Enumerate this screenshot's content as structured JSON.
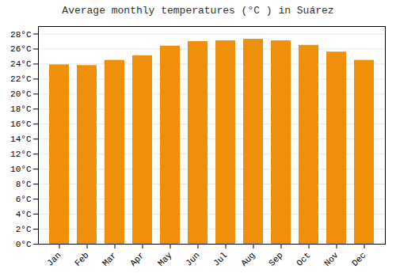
{
  "chart_data": {
    "type": "bar",
    "title": "Average monthly temperatures (°C ) in Suárez",
    "categories": [
      "Jan",
      "Feb",
      "Mar",
      "Apr",
      "May",
      "Jun",
      "Jul",
      "Aug",
      "Sep",
      "Oct",
      "Nov",
      "Dec"
    ],
    "values": [
      23.9,
      23.8,
      24.5,
      25.1,
      26.4,
      27.0,
      27.1,
      27.3,
      27.1,
      26.5,
      25.6,
      24.5
    ],
    "color": "#F0900A",
    "ylim": [
      0,
      29
    ],
    "yticks": [
      {
        "value": 0,
        "label": "0°C"
      },
      {
        "value": 2,
        "label": "2°C"
      },
      {
        "value": 4,
        "label": "4°C"
      },
      {
        "value": 6,
        "label": "6°C"
      },
      {
        "value": 8,
        "label": "8°C"
      },
      {
        "value": 10,
        "label": "10°C"
      },
      {
        "value": 12,
        "label": "12°C"
      },
      {
        "value": 14,
        "label": "14°C"
      },
      {
        "value": 16,
        "label": "16°C"
      },
      {
        "value": 18,
        "label": "18°C"
      },
      {
        "value": 20,
        "label": "20°C"
      },
      {
        "value": 22,
        "label": "22°C"
      },
      {
        "value": 24,
        "label": "24°C"
      },
      {
        "value": 26,
        "label": "26°C"
      },
      {
        "value": 28,
        "label": "28°C"
      }
    ],
    "grid": true
  }
}
